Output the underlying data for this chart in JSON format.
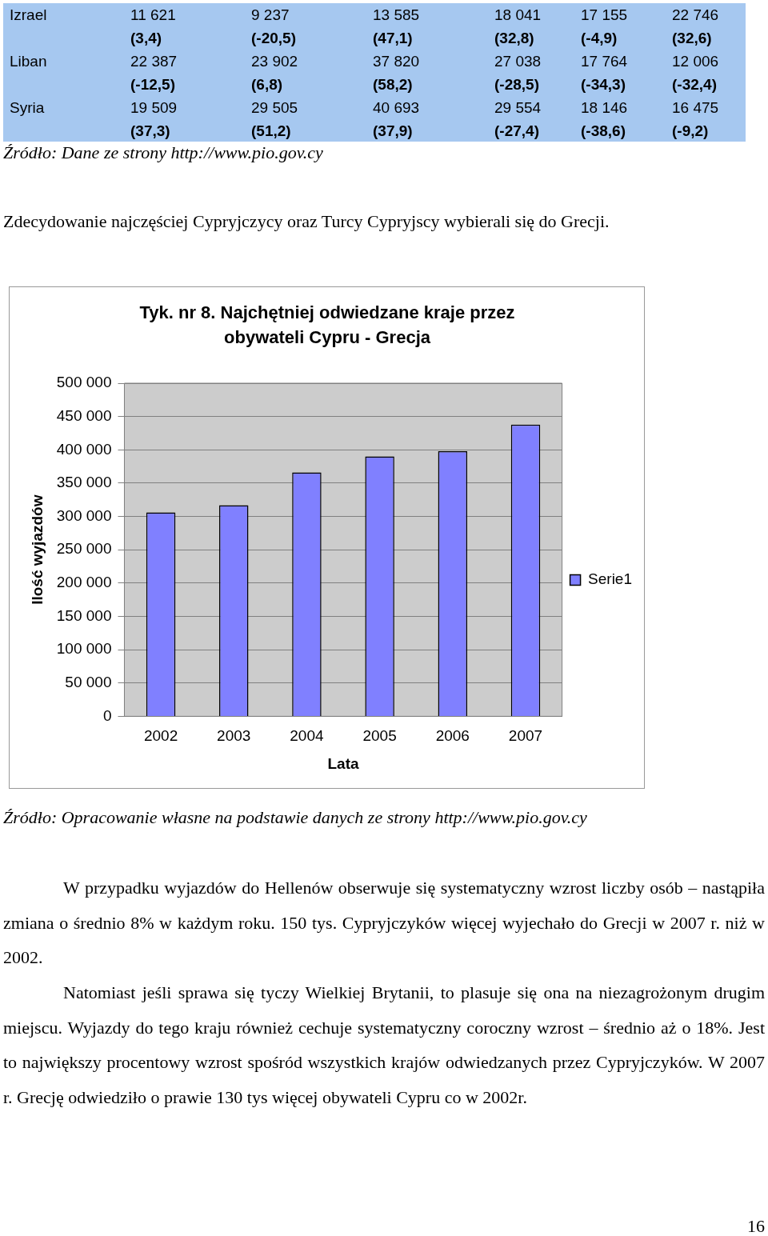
{
  "chart_data": {
    "type": "bar",
    "title": "Tyk. nr 8. Najchętniej odwiedzane kraje przez obywateli Cypru - Grecja",
    "xlabel": "Lata",
    "ylabel": "Ilość wyjazdów",
    "categories": [
      "2002",
      "2003",
      "2004",
      "2005",
      "2006",
      "2007"
    ],
    "series": [
      {
        "name": "Serie1",
        "color": "#8080ff",
        "values": [
          306000,
          317000,
          366000,
          390000,
          398000,
          438000
        ]
      }
    ],
    "ylim": [
      0,
      500000
    ],
    "yticks": [
      {
        "value": 0,
        "label": "0"
      },
      {
        "value": 50000,
        "label": "50 000"
      },
      {
        "value": 100000,
        "label": "100 000"
      },
      {
        "value": 150000,
        "label": "150 000"
      },
      {
        "value": 200000,
        "label": "200 000"
      },
      {
        "value": 250000,
        "label": "250 000"
      },
      {
        "value": 300000,
        "label": "300 000"
      },
      {
        "value": 350000,
        "label": "350 000"
      },
      {
        "value": 400000,
        "label": "400 000"
      },
      {
        "value": 450000,
        "label": "450 000"
      },
      {
        "value": 500000,
        "label": "500 000"
      }
    ],
    "grid": "y",
    "legend": "right",
    "annotations": [
      "Izrael",
      "11 621",
      "9 237",
      "13 585",
      "18 041",
      "17 155",
      "22 746",
      "(3,4)",
      "(-20,5)",
      "(47,1)",
      "(32,8)",
      "(-4,9)",
      "(32,6)",
      "Liban",
      "22 387",
      "23 902",
      "37 820",
      "27 038",
      "17 764",
      "12 006",
      "(-12,5)",
      "(6,8)",
      "(58,2)",
      "(-28,5)",
      "(-34,3)",
      "(-32,4)",
      "Syria",
      "19 509",
      "29 505",
      "40 693",
      "29 554",
      "18 146",
      "16 475",
      "(37,3)",
      "(51,2)",
      "(37,9)",
      "(-27,4)",
      "(-38,6)",
      "(-9,2)",
      "Źródło: Dane ze strony http://www.pio.gov.cy",
      "Zdecydowanie najczęściej Cypryjczycy oraz Turcy Cypryjscy wybierali się do Grecji.",
      "Źródło: Opracowanie własne na podstawie danych ze strony http://www.pio.gov.cy",
      "W przypadku wyjazdów do Hellenów obserwuje się systematyczny wzrost liczby osób – nastąpiła zmiana o średnio  8% w każdym roku. 150 tys. Cypryjczyków więcej wyjechało do Grecji w 2007 r. niż w 2002.",
      "Natomiast jeśli sprawa się tyczy Wielkiej Brytanii, to plasuje się ona na niezagrożonym drugim miejscu. Wyjazdy do tego kraju również cechuje systematyczny coroczny wzrost – średnio aż o 18%. Jest to największy procentowy wzrost spośród wszystkich krajów odwiedzanych przez Cypryjczyków. W 2007 r. Grecję odwiedziło o prawie 130 tys więcej obywateli Cypru co w 2002r.",
      "16"
    ]
  }
}
